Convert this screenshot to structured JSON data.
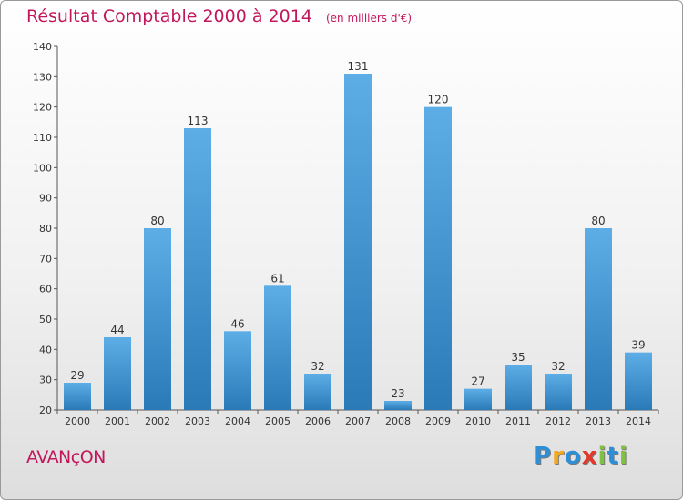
{
  "chart_data": {
    "type": "bar",
    "title": "Résultat Comptable 2000 à 2014",
    "subtitle": "(en milliers d'€)",
    "categories": [
      "2000",
      "2001",
      "2002",
      "2003",
      "2004",
      "2005",
      "2006",
      "2007",
      "2008",
      "2009",
      "2010",
      "2011",
      "2012",
      "2013",
      "2014"
    ],
    "values": [
      29,
      44,
      80,
      113,
      46,
      61,
      32,
      131,
      23,
      120,
      27,
      35,
      32,
      80,
      39
    ],
    "ylim": [
      20,
      140
    ],
    "yticks": [
      20,
      30,
      40,
      50,
      60,
      70,
      80,
      90,
      100,
      110,
      120,
      130,
      140
    ],
    "grid": false,
    "bar_color_top": "#5dade6",
    "bar_color_bottom": "#2a7ab8"
  },
  "place_name": "AVANçON",
  "logo": {
    "text": "Proxiti",
    "letters": [
      {
        "ch": "P",
        "color": "#2e8fd6"
      },
      {
        "ch": "r",
        "color": "#f4a81d"
      },
      {
        "ch": "o",
        "color": "#2e8fd6"
      },
      {
        "ch": "x",
        "color": "#e23a2a"
      },
      {
        "ch": "i",
        "color": "#7fc241"
      },
      {
        "ch": "t",
        "color": "#2e8fd6"
      },
      {
        "ch": "i",
        "color": "#7fc241"
      }
    ]
  }
}
